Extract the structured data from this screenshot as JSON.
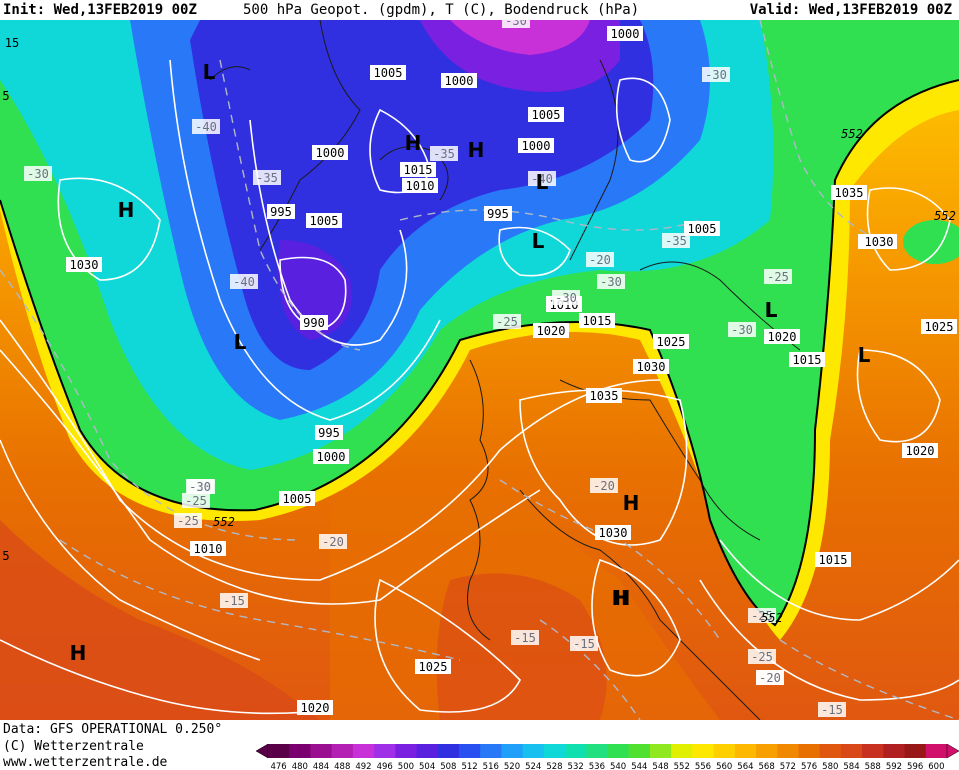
{
  "header": {
    "init_label": "Init:",
    "init_value": "Wed,13FEB2019 00Z",
    "title": "500 hPa Geopot. (gpdm), T (C), Bodendruck (hPa)",
    "valid_label": "Valid:",
    "valid_value": "Wed,13FEB2019 00Z"
  },
  "footer": {
    "data_source": "Data: GFS OPERATIONAL 0.250°",
    "copyright": "(C) Wetterzentrale",
    "website": "www.wetterzentrale.de"
  },
  "colorbar": {
    "values": [
      "476",
      "480",
      "484",
      "488",
      "492",
      "496",
      "500",
      "504",
      "508",
      "512",
      "516",
      "520",
      "524",
      "528",
      "532",
      "536",
      "540",
      "544",
      "548",
      "552",
      "556",
      "560",
      "564",
      "568",
      "572",
      "576",
      "580",
      "584",
      "588",
      "592",
      "596",
      "600"
    ],
    "colors": [
      "#5a0048",
      "#7a0070",
      "#9a1090",
      "#b420b4",
      "#c830d8",
      "#a030e8",
      "#7a20e0",
      "#5a20e0",
      "#3030e0",
      "#2850f0",
      "#2878f8",
      "#20a0f8",
      "#18c0f0",
      "#10d8d8",
      "#10e0b0",
      "#20e080",
      "#30e050",
      "#50e030",
      "#90e820",
      "#e0f000",
      "#ffe800",
      "#ffd000",
      "#ffb800",
      "#f8a000",
      "#f08800",
      "#e87000",
      "#e05810",
      "#d84818",
      "#c83020",
      "#b02020",
      "#981818",
      "#d0106a"
    ]
  },
  "map_labels": {
    "isobars": [
      "1000",
      "1005",
      "1000",
      "1005",
      "1000",
      "1015",
      "1010",
      "1000",
      "995",
      "995",
      "1005",
      "1005",
      "990",
      "995",
      "1000",
      "1005",
      "1010",
      "1015",
      "1020",
      "1030",
      "1010",
      "1020",
      "1015",
      "1025",
      "1030",
      "1035",
      "1030",
      "1025",
      "1030",
      "1035",
      "1030",
      "1010",
      "1015",
      "1025",
      "1020",
      "1015",
      "1025",
      "1020",
      "1005"
    ],
    "temperatures": [
      "-30",
      "-40",
      "-35",
      "-40",
      "-30",
      "-30",
      "-20",
      "-40",
      "-35",
      "-35",
      "-30",
      "-25",
      "-30",
      "-25",
      "-25",
      "-20",
      "-20",
      "-30",
      "-20",
      "-15",
      "-15",
      "-15",
      "-25",
      "-20",
      "-15",
      "-25",
      "-25",
      "-30",
      "-20"
    ],
    "geopotential": [
      "552",
      "552",
      "552",
      "552"
    ],
    "pressure_systems": [
      "L",
      "H",
      "H",
      "H",
      "L",
      "L",
      "L",
      "H",
      "L",
      "L",
      "L",
      "H",
      "H",
      "H"
    ],
    "edge_values": [
      "15",
      "5",
      "5"
    ]
  }
}
